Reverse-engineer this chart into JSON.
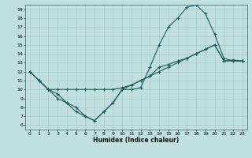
{
  "xlabel": "Humidex (Indice chaleur)",
  "bg_color": "#c0e0e0",
  "grid_color": "#b0c8c8",
  "line_color": "#1a5c5c",
  "xlim": [
    -0.5,
    23.5
  ],
  "ylim": [
    5.5,
    19.5
  ],
  "xticks": [
    0,
    1,
    2,
    3,
    4,
    5,
    6,
    7,
    8,
    9,
    10,
    11,
    12,
    13,
    14,
    15,
    16,
    17,
    18,
    19,
    20,
    21,
    22,
    23
  ],
  "yticks": [
    6,
    7,
    8,
    9,
    10,
    11,
    12,
    13,
    14,
    15,
    16,
    17,
    18,
    19
  ],
  "line1_x": [
    0,
    1,
    2,
    3,
    4,
    5,
    6,
    7,
    8,
    9,
    10,
    11,
    12,
    13,
    14,
    15,
    16,
    17,
    18,
    19,
    20,
    21,
    22,
    23
  ],
  "line1_y": [
    12,
    11,
    10,
    9.0,
    8.5,
    8.0,
    7.0,
    6.5,
    7.5,
    8.5,
    10,
    10,
    10.2,
    12.5,
    15.0,
    17.0,
    18.0,
    19.2,
    19.5,
    18.5,
    16.2,
    13.5,
    13.2,
    13.2
  ],
  "line2_x": [
    0,
    1,
    2,
    3,
    4,
    5,
    6,
    7,
    8,
    9,
    10,
    11,
    12,
    13,
    14,
    15,
    16,
    17,
    18,
    19,
    20,
    21,
    22,
    23
  ],
  "line2_y": [
    12,
    11,
    10,
    10,
    10,
    10,
    10,
    10,
    10,
    10,
    10.2,
    10.5,
    11.0,
    11.5,
    12.0,
    12.5,
    13.0,
    13.5,
    14.0,
    14.5,
    15.0,
    13.2,
    13.2,
    13.2
  ],
  "line3_x": [
    0,
    1,
    2,
    3,
    4,
    5,
    6,
    7,
    8,
    9,
    10,
    11,
    12,
    13,
    14,
    15,
    16,
    17,
    18,
    19,
    20,
    21,
    22,
    23
  ],
  "line3_y": [
    12,
    11,
    10,
    9.5,
    8.5,
    7.5,
    7.0,
    6.5,
    7.5,
    8.5,
    10,
    10.5,
    11.0,
    11.5,
    12.5,
    12.8,
    13.2,
    13.5,
    14.0,
    14.5,
    15.0,
    13.2,
    13.3,
    13.2
  ]
}
